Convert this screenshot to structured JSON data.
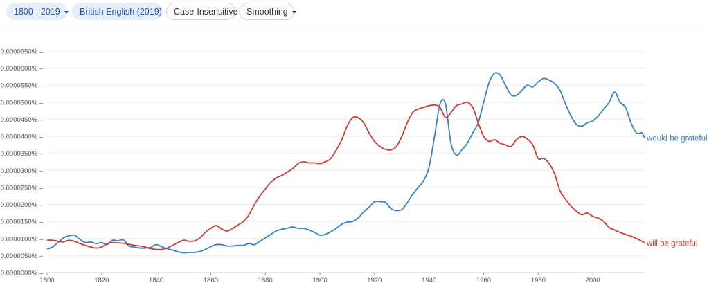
{
  "toolbar": {
    "range_label": "1800 - 2019",
    "corpus_label": "British English (2019)",
    "case_label": "Case-Insensitive",
    "smoothing_label": "Smoothing",
    "chip_fill_color": "#e6eefb",
    "chip_text_color": "#1a56b3"
  },
  "chart_data": {
    "type": "line",
    "xlabel": "",
    "ylabel": "",
    "xlim": [
      1800,
      2019
    ],
    "ylim": [
      0,
      6.5e-07
    ],
    "x_ticks": [
      1800,
      1820,
      1840,
      1860,
      1880,
      1900,
      1920,
      1940,
      1960,
      1980,
      2000
    ],
    "x_tick_labels": [
      "1800",
      "1820",
      "1840",
      "1860",
      "1880",
      "1900",
      "1920",
      "1940",
      "1960",
      "1980",
      "2000"
    ],
    "y_ticks": [
      0,
      5e-08,
      1e-07,
      1.5e-07,
      2e-07,
      2.5e-07,
      3e-07,
      3.5e-07,
      4e-07,
      4.5e-07,
      5e-07,
      5.5e-07,
      6e-07,
      6.5e-07
    ],
    "y_tick_labels": [
      "0.0000000%",
      "0.0000050%",
      "0.0000100%",
      "0.0000150%",
      "0.0000200%",
      "0.0000250%",
      "0.0000300%",
      "0.0000350%",
      "0.0000400%",
      "0.0000450%",
      "0.0000500%",
      "0.0000550%",
      "0.0000600%",
      "0.0000650%"
    ],
    "grid": "horizontal",
    "legend": "end-of-line labels",
    "series": [
      {
        "name": "would be grateful",
        "color": "#3a80c4",
        "x": [
          1800,
          1802,
          1804,
          1806,
          1808,
          1810,
          1812,
          1814,
          1816,
          1818,
          1820,
          1822,
          1824,
          1826,
          1828,
          1830,
          1832,
          1834,
          1836,
          1838,
          1840,
          1842,
          1844,
          1846,
          1848,
          1850,
          1852,
          1854,
          1856,
          1858,
          1860,
          1862,
          1864,
          1866,
          1868,
          1870,
          1872,
          1874,
          1876,
          1878,
          1880,
          1882,
          1884,
          1886,
          1888,
          1890,
          1892,
          1894,
          1896,
          1898,
          1900,
          1902,
          1904,
          1906,
          1908,
          1910,
          1912,
          1914,
          1916,
          1918,
          1920,
          1922,
          1924,
          1926,
          1928,
          1930,
          1932,
          1934,
          1936,
          1938,
          1940,
          1942,
          1944,
          1946,
          1948,
          1950,
          1952,
          1954,
          1956,
          1958,
          1960,
          1962,
          1964,
          1966,
          1968,
          1970,
          1972,
          1974,
          1976,
          1978,
          1980,
          1982,
          1984,
          1986,
          1988,
          1990,
          1992,
          1994,
          1996,
          1998,
          2000,
          2002,
          2004,
          2006,
          2008,
          2010,
          2012,
          2014,
          2016,
          2018,
          2019
        ],
        "values": [
          6.9e-08,
          7.5e-08,
          8.8e-08,
          1.02e-07,
          1.08e-07,
          1.1e-07,
          9.8e-08,
          8.8e-08,
          9e-08,
          8.5e-08,
          8.8e-08,
          8.2e-08,
          9.5e-08,
          9.3e-08,
          9.6e-08,
          7.8e-08,
          7.5e-08,
          7.2e-08,
          7.2e-08,
          7.4e-08,
          8.2e-08,
          7.6e-08,
          7e-08,
          6.6e-08,
          6.1e-08,
          5.8e-08,
          5.9e-08,
          5.9e-08,
          6.2e-08,
          6.8e-08,
          7.6e-08,
          8.2e-08,
          8.2e-08,
          7.8e-08,
          7.8e-08,
          8e-08,
          8e-08,
          8.5e-08,
          8.2e-08,
          9.2e-08,
          1.02e-07,
          1.12e-07,
          1.22e-07,
          1.27e-07,
          1.3e-07,
          1.34e-07,
          1.3e-07,
          1.3e-07,
          1.25e-07,
          1.18e-07,
          1.1e-07,
          1.12e-07,
          1.2e-07,
          1.3e-07,
          1.42e-07,
          1.48e-07,
          1.5e-07,
          1.6e-07,
          1.78e-07,
          1.92e-07,
          2.08e-07,
          2.08e-07,
          2.06e-07,
          1.88e-07,
          1.82e-07,
          1.85e-07,
          2.05e-07,
          2.3e-07,
          2.5e-07,
          2.7e-07,
          3.1e-07,
          4e-07,
          4.95e-07,
          4.95e-07,
          3.8e-07,
          3.45e-07,
          3.6e-07,
          3.8e-07,
          4.1e-07,
          4.4e-07,
          5e-07,
          5.58e-07,
          5.85e-07,
          5.8e-07,
          5.5e-07,
          5.22e-07,
          5.2e-07,
          5.35e-07,
          5.5e-07,
          5.45e-07,
          5.6e-07,
          5.7e-07,
          5.65e-07,
          5.55e-07,
          5.35e-07,
          4.95e-07,
          4.6e-07,
          4.35e-07,
          4.3e-07,
          4.4e-07,
          4.45e-07,
          4.6e-07,
          4.8e-07,
          5e-07,
          5.3e-07,
          5e-07,
          4.85e-07,
          4.4e-07,
          4.1e-07,
          4.1e-07,
          3.95e-07
        ]
      },
      {
        "name": "will be grateful",
        "color": "#cc3b33",
        "x": [
          1800,
          1802,
          1804,
          1806,
          1808,
          1810,
          1812,
          1814,
          1816,
          1818,
          1820,
          1822,
          1824,
          1826,
          1828,
          1830,
          1832,
          1834,
          1836,
          1838,
          1840,
          1842,
          1844,
          1846,
          1848,
          1850,
          1852,
          1854,
          1856,
          1858,
          1860,
          1862,
          1864,
          1866,
          1868,
          1870,
          1872,
          1874,
          1876,
          1878,
          1880,
          1882,
          1884,
          1886,
          1888,
          1890,
          1892,
          1894,
          1896,
          1898,
          1900,
          1902,
          1904,
          1906,
          1908,
          1910,
          1912,
          1914,
          1916,
          1918,
          1920,
          1922,
          1924,
          1926,
          1928,
          1930,
          1932,
          1934,
          1936,
          1938,
          1940,
          1942,
          1944,
          1946,
          1948,
          1950,
          1952,
          1954,
          1956,
          1958,
          1960,
          1962,
          1964,
          1966,
          1968,
          1970,
          1972,
          1974,
          1976,
          1978,
          1980,
          1982,
          1984,
          1986,
          1988,
          1990,
          1992,
          1994,
          1996,
          1998,
          2000,
          2002,
          2004,
          2006,
          2008,
          2010,
          2012,
          2014,
          2016,
          2018,
          2019
        ],
        "values": [
          9.5e-08,
          9.5e-08,
          9.2e-08,
          9e-08,
          9.5e-08,
          9.2e-08,
          8.5e-08,
          8e-08,
          7.5e-08,
          7.2e-08,
          7.5e-08,
          8.5e-08,
          8.8e-08,
          8.7e-08,
          8.6e-08,
          8.3e-08,
          8e-08,
          7.8e-08,
          7.5e-08,
          7e-08,
          6.8e-08,
          6.8e-08,
          7.2e-08,
          8e-08,
          8.8e-08,
          9.5e-08,
          9.2e-08,
          9.3e-08,
          1.02e-07,
          1.18e-07,
          1.3e-07,
          1.38e-07,
          1.28e-07,
          1.22e-07,
          1.3e-07,
          1.4e-07,
          1.5e-07,
          1.7e-07,
          2e-07,
          2.25e-07,
          2.45e-07,
          2.65e-07,
          2.78e-07,
          2.85e-07,
          2.95e-07,
          3.05e-07,
          3.2e-07,
          3.25e-07,
          3.22e-07,
          3.22e-07,
          3.2e-07,
          3.25e-07,
          3.35e-07,
          3.6e-07,
          3.9e-07,
          4.3e-07,
          4.55e-07,
          4.55e-07,
          4.4e-07,
          4.1e-07,
          3.85e-07,
          3.7e-07,
          3.62e-07,
          3.6e-07,
          3.7e-07,
          4e-07,
          4.4e-07,
          4.7e-07,
          4.8e-07,
          4.85e-07,
          4.9e-07,
          4.92e-07,
          4.85e-07,
          4.55e-07,
          4.7e-07,
          4.9e-07,
          4.95e-07,
          5e-07,
          4.85e-07,
          4.4e-07,
          4e-07,
          3.85e-07,
          3.9e-07,
          3.8e-07,
          3.75e-07,
          3.7e-07,
          3.9e-07,
          4e-07,
          3.92e-07,
          3.75e-07,
          3.35e-07,
          3.35e-07,
          3.2e-07,
          2.9e-07,
          2.4e-07,
          2.15e-07,
          1.95e-07,
          1.8e-07,
          1.7e-07,
          1.75e-07,
          1.65e-07,
          1.6e-07,
          1.5e-07,
          1.32e-07,
          1.25e-07,
          1.18e-07,
          1.12e-07,
          1.07e-07,
          1e-07,
          9.2e-08,
          8.6e-08
        ]
      }
    ]
  }
}
